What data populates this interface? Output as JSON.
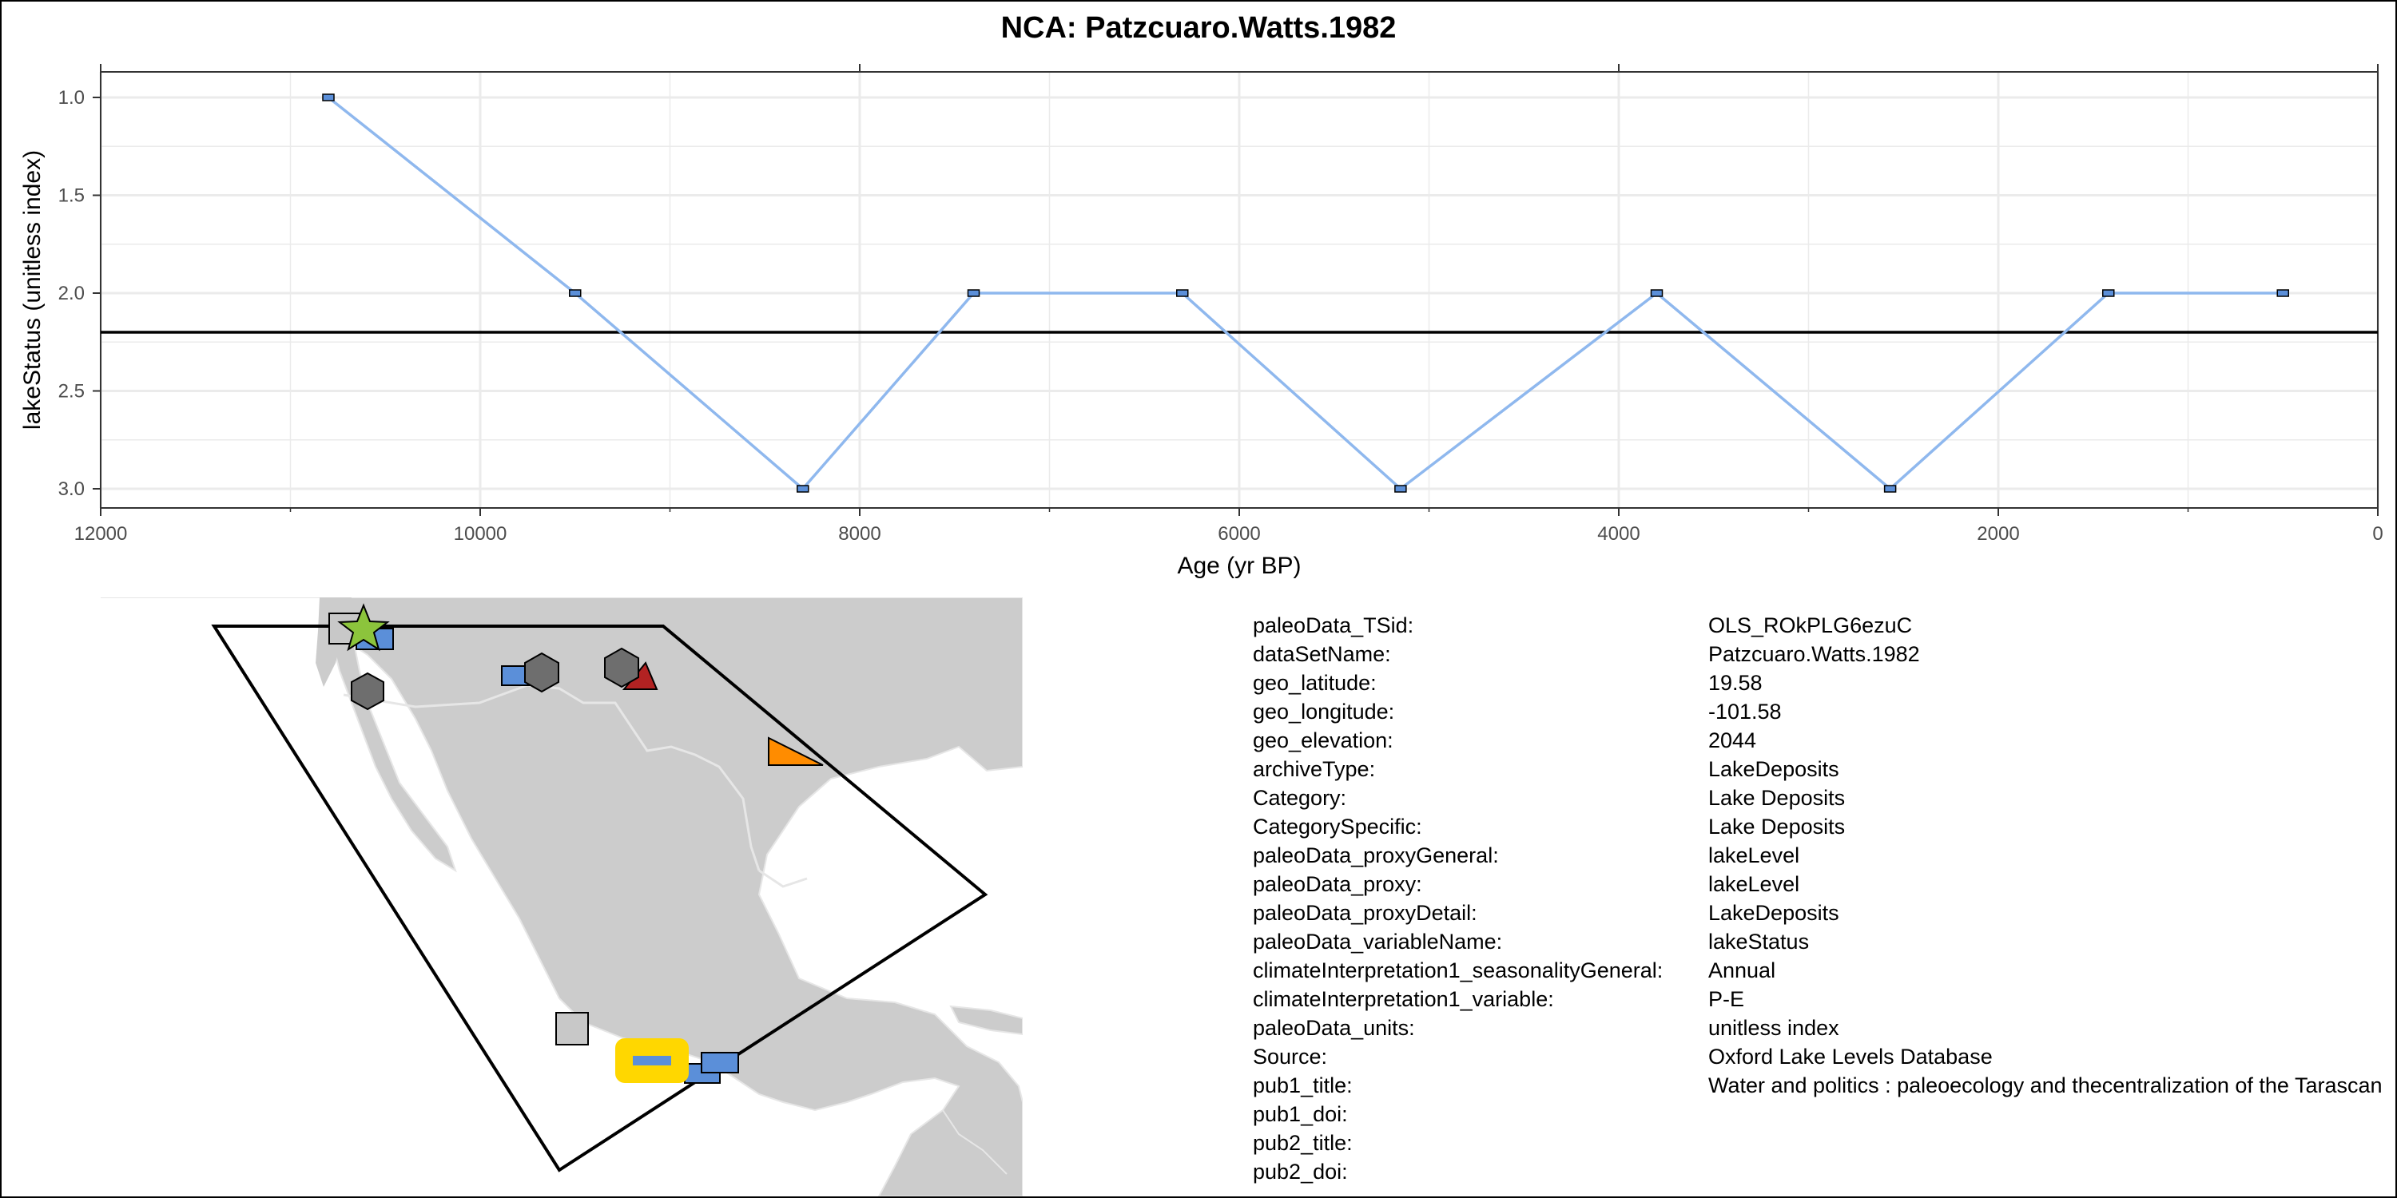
{
  "colors": {
    "line": "#8fb8ee",
    "point_fill": "#5b8fd9",
    "reference_line": "#000000",
    "grid": "#ebebeb",
    "land": "#cccccc",
    "border_lines": "#e6e6e6"
  },
  "chart_data": {
    "type": "line",
    "title": "NCA: Patzcuaro.Watts.1982",
    "xlabel": "Age (yr BP)",
    "ylabel": "lakeStatus (unitless index)",
    "x_reversed": true,
    "y_reversed": true,
    "xlim": [
      12000,
      0
    ],
    "ylim": [
      1.0,
      3.0
    ],
    "x_ticks": [
      12000,
      10000,
      8000,
      6000,
      4000,
      2000,
      0
    ],
    "y_ticks": [
      1.0,
      1.5,
      2.0,
      2.5,
      3.0
    ],
    "x_tick_labels": [
      "12000",
      "10000",
      "8000",
      "6000",
      "4000",
      "2000",
      "0"
    ],
    "y_tick_labels": [
      "1.0",
      "1.5",
      "2.0",
      "2.5",
      "3.0"
    ],
    "grid": true,
    "reference_line_y": 2.2,
    "series": [
      {
        "x": [
          10800,
          9500,
          8300,
          7400,
          6300,
          5150,
          3800,
          2570,
          1420,
          500
        ],
        "y": [
          1.0,
          2.0,
          3.0,
          2.0,
          2.0,
          3.0,
          2.0,
          3.0,
          2.0,
          2.0
        ]
      }
    ]
  },
  "map": {
    "markers": [
      {
        "shape": "square",
        "color": "#c8c8c8"
      },
      {
        "shape": "star",
        "color": "#8cc43c"
      },
      {
        "shape": "rect",
        "color": "#5b8fd9"
      },
      {
        "shape": "hexagon",
        "color": "#6e6e6e"
      },
      {
        "shape": "rect",
        "color": "#5b8fd9"
      },
      {
        "shape": "hexagon",
        "color": "#6e6e6e"
      },
      {
        "shape": "hexagon",
        "color": "#6e6e6e"
      },
      {
        "shape": "triangle",
        "color": "#b22222"
      },
      {
        "shape": "triangle",
        "color": "#ff8c00"
      },
      {
        "shape": "square",
        "color": "#c8c8c8"
      },
      {
        "shape": "highlight-rect",
        "color": "#ffd700"
      },
      {
        "shape": "rect",
        "color": "#5b8fd9"
      },
      {
        "shape": "rect",
        "color": "#5b8fd9"
      }
    ]
  },
  "metadata": [
    {
      "key": "paleoData_TSid:",
      "value": "OLS_ROkPLG6ezuC"
    },
    {
      "key": "dataSetName:",
      "value": "Patzcuaro.Watts.1982"
    },
    {
      "key": "geo_latitude:",
      "value": "19.58"
    },
    {
      "key": "geo_longitude:",
      "value": "-101.58"
    },
    {
      "key": "geo_elevation:",
      "value": "2044"
    },
    {
      "key": "archiveType:",
      "value": "LakeDeposits"
    },
    {
      "key": "Category:",
      "value": "Lake Deposits"
    },
    {
      "key": "CategorySpecific:",
      "value": "Lake Deposits"
    },
    {
      "key": "paleoData_proxyGeneral:",
      "value": "lakeLevel"
    },
    {
      "key": "paleoData_proxy:",
      "value": "lakeLevel"
    },
    {
      "key": "paleoData_proxyDetail:",
      "value": "LakeDeposits"
    },
    {
      "key": "paleoData_variableName:",
      "value": "lakeStatus"
    },
    {
      "key": "climateInterpretation1_seasonalityGeneral:",
      "value": "Annual"
    },
    {
      "key": "climateInterpretation1_variable:",
      "value": "P-E"
    },
    {
      "key": "paleoData_units:",
      "value": "unitless index"
    },
    {
      "key": "Source:",
      "value": "Oxford Lake Levels Database"
    },
    {
      "key": "pub1_title:",
      "value": "Water and politics : paleoecology and thecentralization of the Tarascan"
    },
    {
      "key": "pub1_doi:",
      "value": ""
    },
    {
      "key": "pub2_title:",
      "value": ""
    },
    {
      "key": "pub2_doi:",
      "value": ""
    }
  ]
}
